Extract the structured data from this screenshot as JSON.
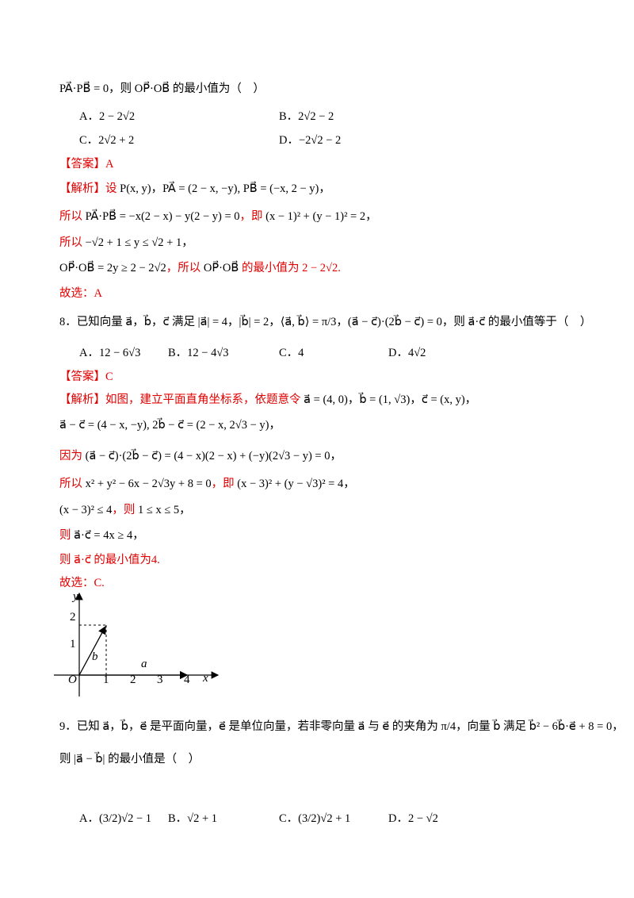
{
  "lines": [
    [
      {
        "text": "PA⃗·PB⃗ = 0，则 OP⃗·OB⃗ 的最小值为（　）",
        "color": "#000000"
      }
    ],
    [
      {
        "text": "A．2 − 2√2",
        "color": "#000000"
      },
      {
        "text": "B．2√2 − 2",
        "color": "#000000"
      }
    ],
    [
      {
        "text": "C．2√2 + 2",
        "color": "#000000"
      },
      {
        "text": "D．−2√2 − 2",
        "color": "#000000"
      }
    ],
    [
      {
        "text": "【答案】A",
        "color": "#e00000"
      }
    ],
    [
      {
        "text": "【解析】设 ",
        "color": "#e00000"
      },
      {
        "text": "P(x, y)，PA⃗ = (2 − x, −y), PB⃗ = (−x, 2 − y)，",
        "color": "#000000"
      }
    ],
    [
      {
        "text": "所以 ",
        "color": "#e00000"
      },
      {
        "text": "PA⃗·PB⃗ = −x(2 − x) − y(2 − y) = 0",
        "color": "#000000"
      },
      {
        "text": "，即 ",
        "color": "#e00000"
      },
      {
        "text": "(x − 1)² + (y − 1)² = 2，",
        "color": "#000000"
      }
    ],
    [
      {
        "text": "所以 ",
        "color": "#e00000"
      },
      {
        "text": "−√2 + 1 ≤ y ≤ √2 + 1，",
        "color": "#000000"
      }
    ],
    [
      {
        "text": "OP⃗·OB⃗ = 2y ≥ 2 − 2√2",
        "color": "#000000"
      },
      {
        "text": "，所以 ",
        "color": "#e00000"
      },
      {
        "text": "OP⃗·OB⃗",
        "color": "#000000"
      },
      {
        "text": " 的最小值为 2 − 2√2.",
        "color": "#e00000"
      }
    ],
    [
      {
        "text": "故选：A",
        "color": "#e00000"
      }
    ],
    [
      {
        "text": "8．已知向量 a⃗，b⃗，c⃗ 满足 |a⃗| = 4，|b⃗| = 2，⟨a⃗, b⃗⟩ = π/3，(a⃗ − c⃗)·(2b⃗ − c⃗) = 0，则 a⃗·c⃗ 的最小值等于（　）",
        "color": "#000000"
      }
    ],
    [
      {
        "text": "A．12 − 6√3",
        "color": "#000000"
      },
      {
        "text": "B．12 − 4√3",
        "color": "#000000"
      },
      {
        "text": "C．4",
        "color": "#000000"
      },
      {
        "text": "D．4√2",
        "color": "#000000"
      }
    ],
    [
      {
        "text": "【答案】C",
        "color": "#e00000"
      }
    ],
    [
      {
        "text": "【解析】如图，建立平面直角坐标系，依题意令 ",
        "color": "#e00000"
      },
      {
        "text": "a⃗ = (4, 0)，b⃗ = (1, √3)，c⃗ = (x, y)，",
        "color": "#000000"
      }
    ],
    [
      {
        "text": "a⃗ − c⃗ = (4 − x, −y), 2b⃗ − c⃗ = (2 − x, 2√3 − y)，",
        "color": "#000000"
      }
    ],
    [
      {
        "text": "因为 ",
        "color": "#e00000"
      },
      {
        "text": "(a⃗ − c⃗)·(2b⃗ − c⃗) = (4 − x)(2 − x) + (−y)(2√3 − y) = 0，",
        "color": "#000000"
      }
    ],
    [
      {
        "text": "所以 ",
        "color": "#e00000"
      },
      {
        "text": "x² + y² − 6x − 2√3y + 8 = 0",
        "color": "#000000"
      },
      {
        "text": "，即 ",
        "color": "#e00000"
      },
      {
        "text": "(x − 3)² + (y − √3)² = 4，",
        "color": "#000000"
      }
    ],
    [
      {
        "text": "(x − 3)² ≤ 4",
        "color": "#000000"
      },
      {
        "text": "，则 ",
        "color": "#e00000"
      },
      {
        "text": "1 ≤ x ≤ 5，",
        "color": "#000000"
      }
    ],
    [
      {
        "text": "则 ",
        "color": "#e00000"
      },
      {
        "text": "a⃗·c⃗ = 4x ≥ 4，",
        "color": "#000000"
      }
    ],
    [
      {
        "text": "则 a⃗·c⃗ 的最小值为4.",
        "color": "#e00000"
      }
    ],
    [
      {
        "text": "故选：C.",
        "color": "#e00000"
      }
    ],
    [
      {
        "text": "9．已知 a⃗，b⃗，e⃗ 是平面向量，e⃗ 是单位向量，若非零向量 a⃗ 与 e⃗ 的夹角为 π/4，向量 b⃗ 满足 b⃗² − 6b⃗·e⃗ + 8 = 0，",
        "color": "#000000"
      }
    ],
    [
      {
        "text": "则 |a⃗ − b⃗| 的最小值是（　）",
        "color": "#000000"
      }
    ],
    [
      {
        "text": "A．(3/2)√2 − 1",
        "color": "#000000"
      },
      {
        "text": "B．√2 + 1",
        "color": "#000000"
      },
      {
        "text": "C．(3/2)√2 + 1",
        "color": "#000000"
      },
      {
        "text": "D．2 − √2",
        "color": "#000000"
      }
    ]
  ],
  "figure": {
    "y_label": "y",
    "y_ticks": [
      "1",
      "2"
    ],
    "origin": "O",
    "x_ticks": [
      "1",
      "2",
      "3",
      "4"
    ],
    "x_label": "x",
    "a_label": "a⃗",
    "b_label": "b⃗"
  }
}
